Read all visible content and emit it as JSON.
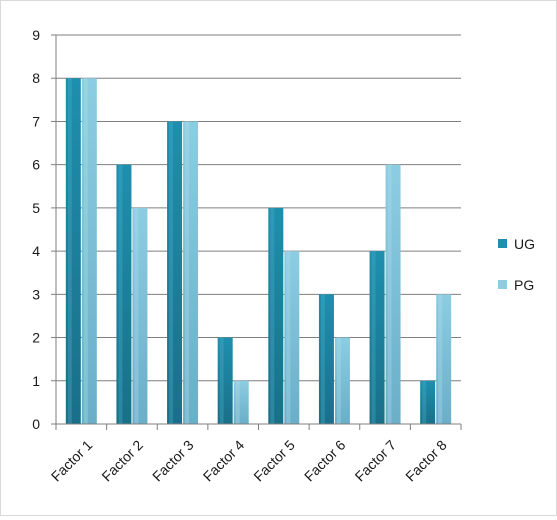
{
  "chart_data": {
    "type": "bar",
    "categories": [
      "Factor 1",
      "Factor 2",
      "Factor 3",
      "Factor 4",
      "Factor 5",
      "Factor 6",
      "Factor 7",
      "Factor 8"
    ],
    "series": [
      {
        "name": "UG",
        "values": [
          8,
          6,
          7,
          2,
          5,
          3,
          4,
          1
        ],
        "color": "#1e8fae",
        "color_light": "#4bb2cc",
        "color_dark": "#1a6f88"
      },
      {
        "name": "PG",
        "values": [
          8,
          5,
          7,
          1,
          4,
          2,
          6,
          3
        ],
        "color": "#8ccde2",
        "color_light": "#b0dfee",
        "color_dark": "#6aaec8"
      }
    ],
    "ylim": [
      0,
      9
    ],
    "yticks": [
      "0",
      "1",
      "2",
      "3",
      "4",
      "5",
      "6",
      "7",
      "8",
      "9"
    ],
    "grid": true,
    "legend_position": "right",
    "title": "",
    "xlabel": "",
    "ylabel": ""
  }
}
